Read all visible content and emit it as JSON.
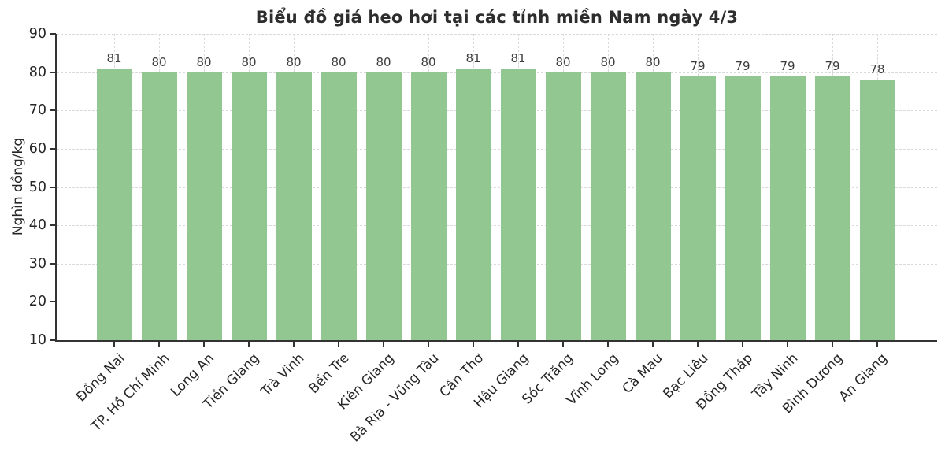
{
  "chart_data": {
    "type": "bar",
    "title": "Biểu đồ giá heo hơi tại các tỉnh miền Nam ngày 4/3",
    "xlabel": "",
    "ylabel": "Nghìn đồng/kg",
    "categories": [
      "Đồng Nai",
      "TP. Hồ Chí Minh",
      "Long An",
      "Tiền Giang",
      "Trà Vinh",
      "Bến Tre",
      "Kiên Giang",
      "Bà Rịa - Vũng Tàu",
      "Cần Thơ",
      "Hậu Giang",
      "Sóc Trăng",
      "Vĩnh Long",
      "Cà Mau",
      "Bạc Liêu",
      "Đồng Tháp",
      "Tây Ninh",
      "Bình Dương",
      "An Giang"
    ],
    "values": [
      81,
      80,
      80,
      80,
      80,
      80,
      80,
      80,
      81,
      81,
      80,
      80,
      80,
      79,
      79,
      79,
      79,
      78
    ],
    "ylim": [
      10,
      90
    ],
    "yticks": [
      10,
      20,
      30,
      40,
      50,
      60,
      70,
      80,
      90
    ],
    "grid": "dashed, both axes",
    "legend_position": "none",
    "colors": {
      "bar": "#92c791",
      "grid": "#d9d9d9",
      "axis": "#333333",
      "title_text": "#2d2d2d",
      "tick_text": "#262626",
      "value_label_text": "#3d3d3d"
    }
  }
}
